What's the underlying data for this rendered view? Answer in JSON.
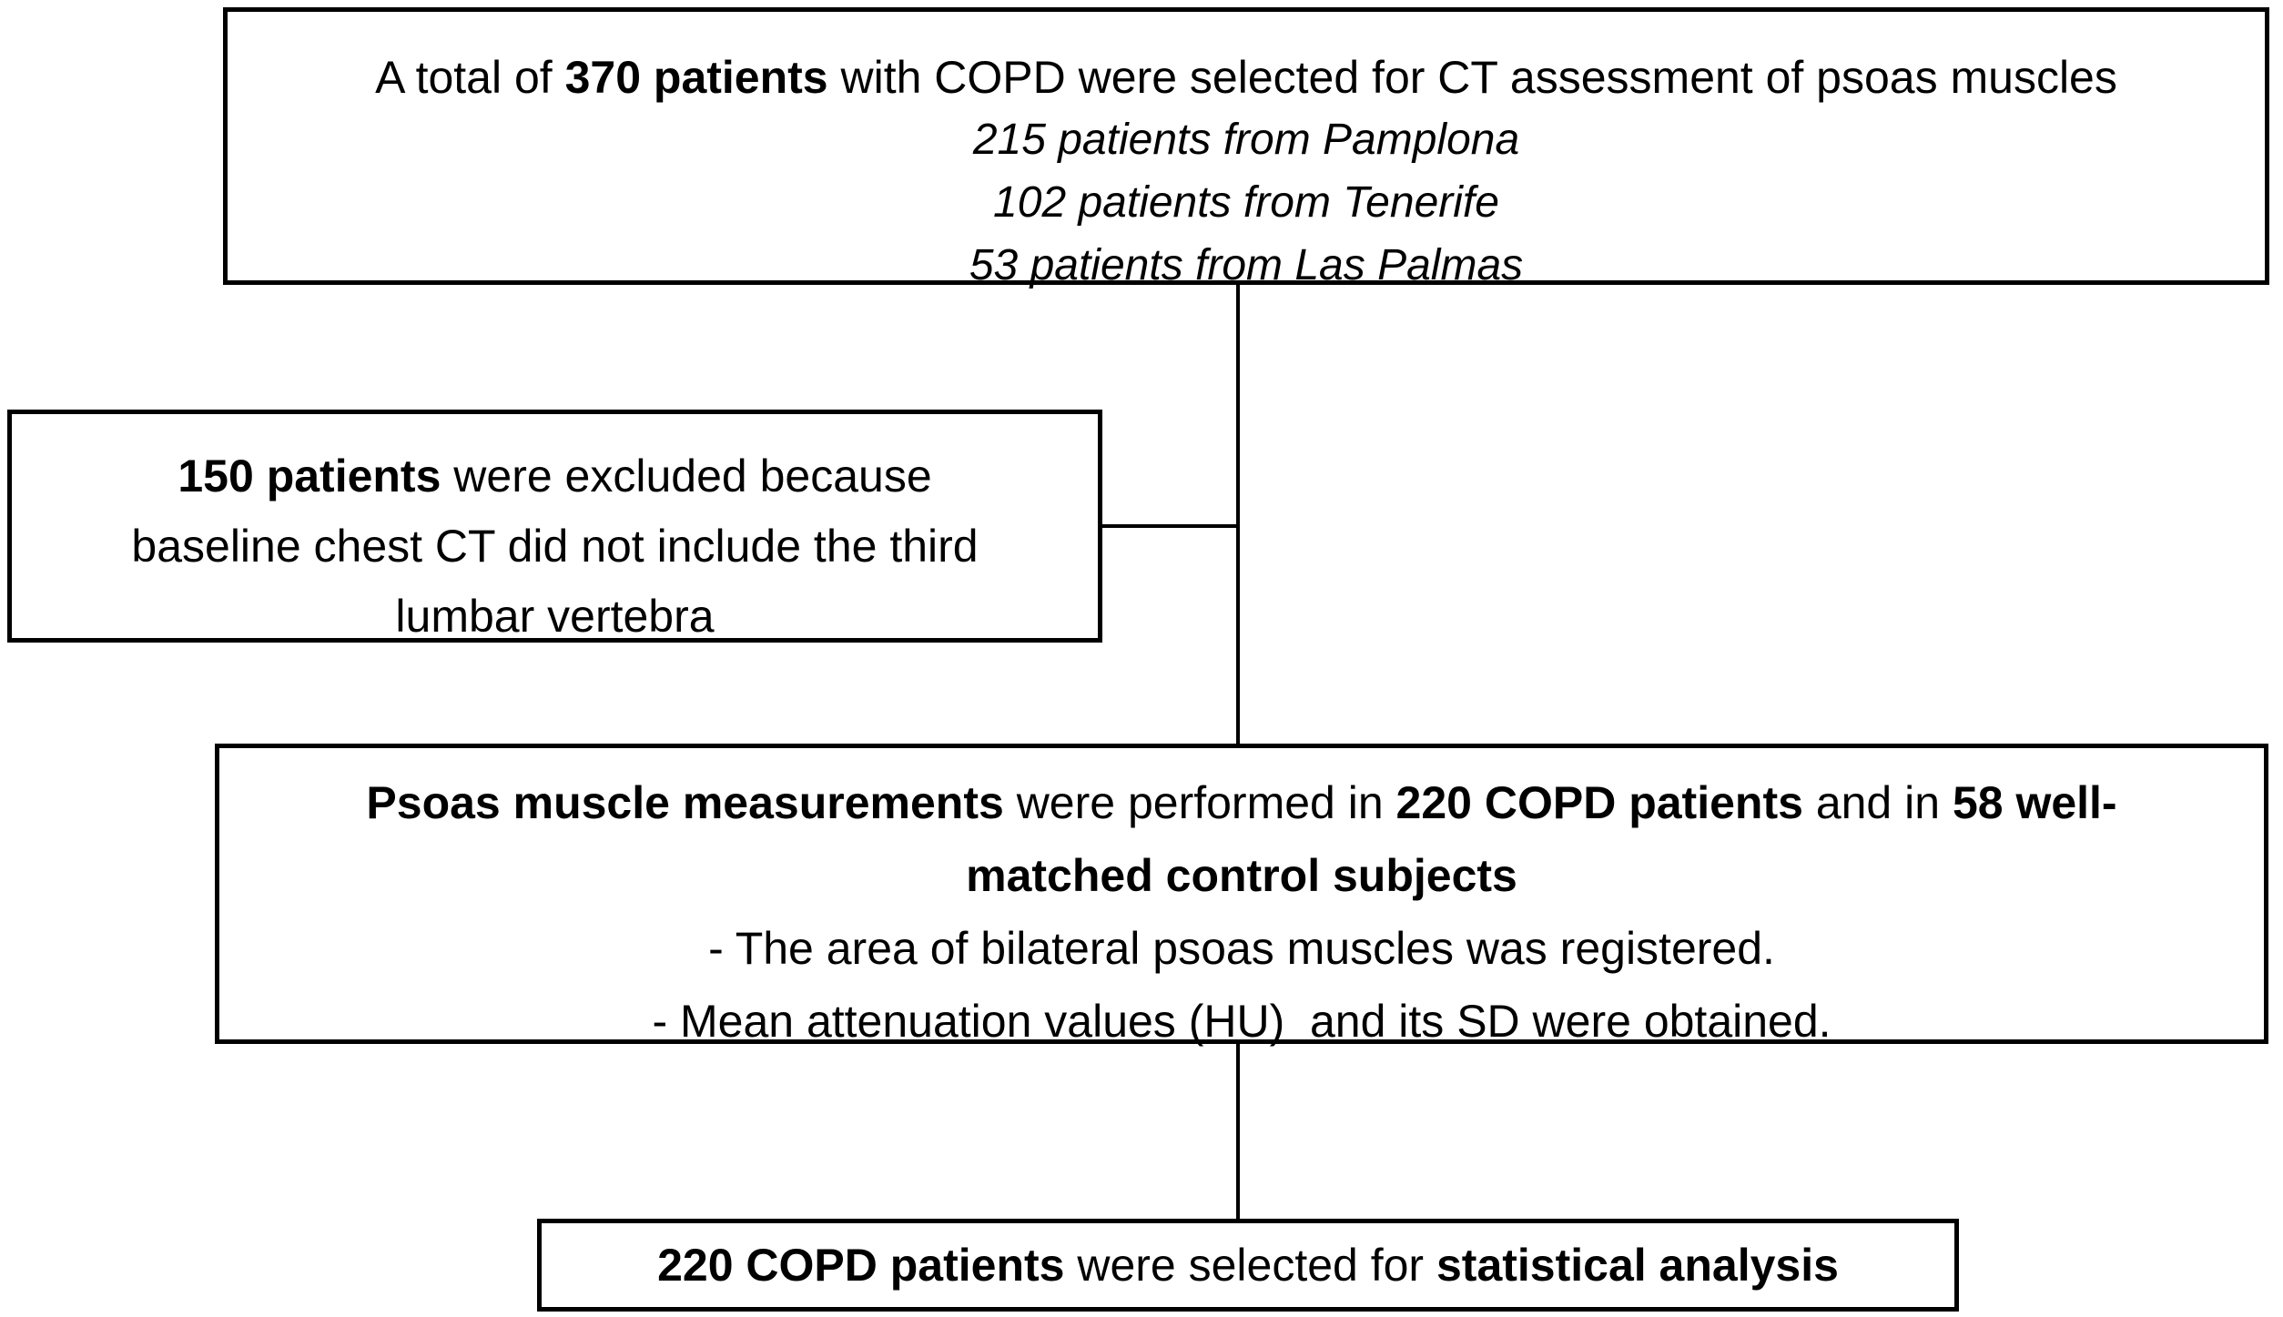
{
  "flowchart": {
    "colors": {
      "border": "#000000",
      "background": "#ffffff",
      "text": "#000000"
    },
    "top_box": {
      "line1": [
        {
          "text": "A total of ",
          "bold": false
        },
        {
          "text": "370 patients",
          "bold": true
        },
        {
          "text": " with COPD were selected for CT assessment of psoas muscles",
          "bold": false
        }
      ],
      "origins": [
        "215 patients from Pamplona",
        "102 patients from Tenerife",
        "53 patients from Las Palmas"
      ]
    },
    "exclusion_box": {
      "lines": [
        [
          {
            "text": "150 patients",
            "bold": true
          },
          {
            "text": " were excluded because",
            "bold": false
          }
        ],
        [
          {
            "text": "baseline chest CT did not include the third",
            "bold": false
          }
        ],
        [
          {
            "text": "lumbar vertebra",
            "bold": false
          }
        ]
      ]
    },
    "measurement_box": {
      "line1": [
        {
          "text": "Psoas muscle measurements",
          "bold": true
        },
        {
          "text": " were performed in ",
          "bold": false
        },
        {
          "text": "220 COPD patients",
          "bold": true
        },
        {
          "text": " and in ",
          "bold": false
        },
        {
          "text": "58 well-",
          "bold": true
        }
      ],
      "line2": [
        {
          "text": "matched control subjects",
          "bold": true
        }
      ],
      "bullets": [
        "- The area of bilateral psoas muscles was registered.",
        "- Mean attenuation values (HU)  and its SD were obtained."
      ]
    },
    "final_box": {
      "line": [
        {
          "text": "220 COPD patients",
          "bold": true
        },
        {
          "text": " were selected for ",
          "bold": false
        },
        {
          "text": "statistical analysis",
          "bold": true
        }
      ]
    }
  }
}
